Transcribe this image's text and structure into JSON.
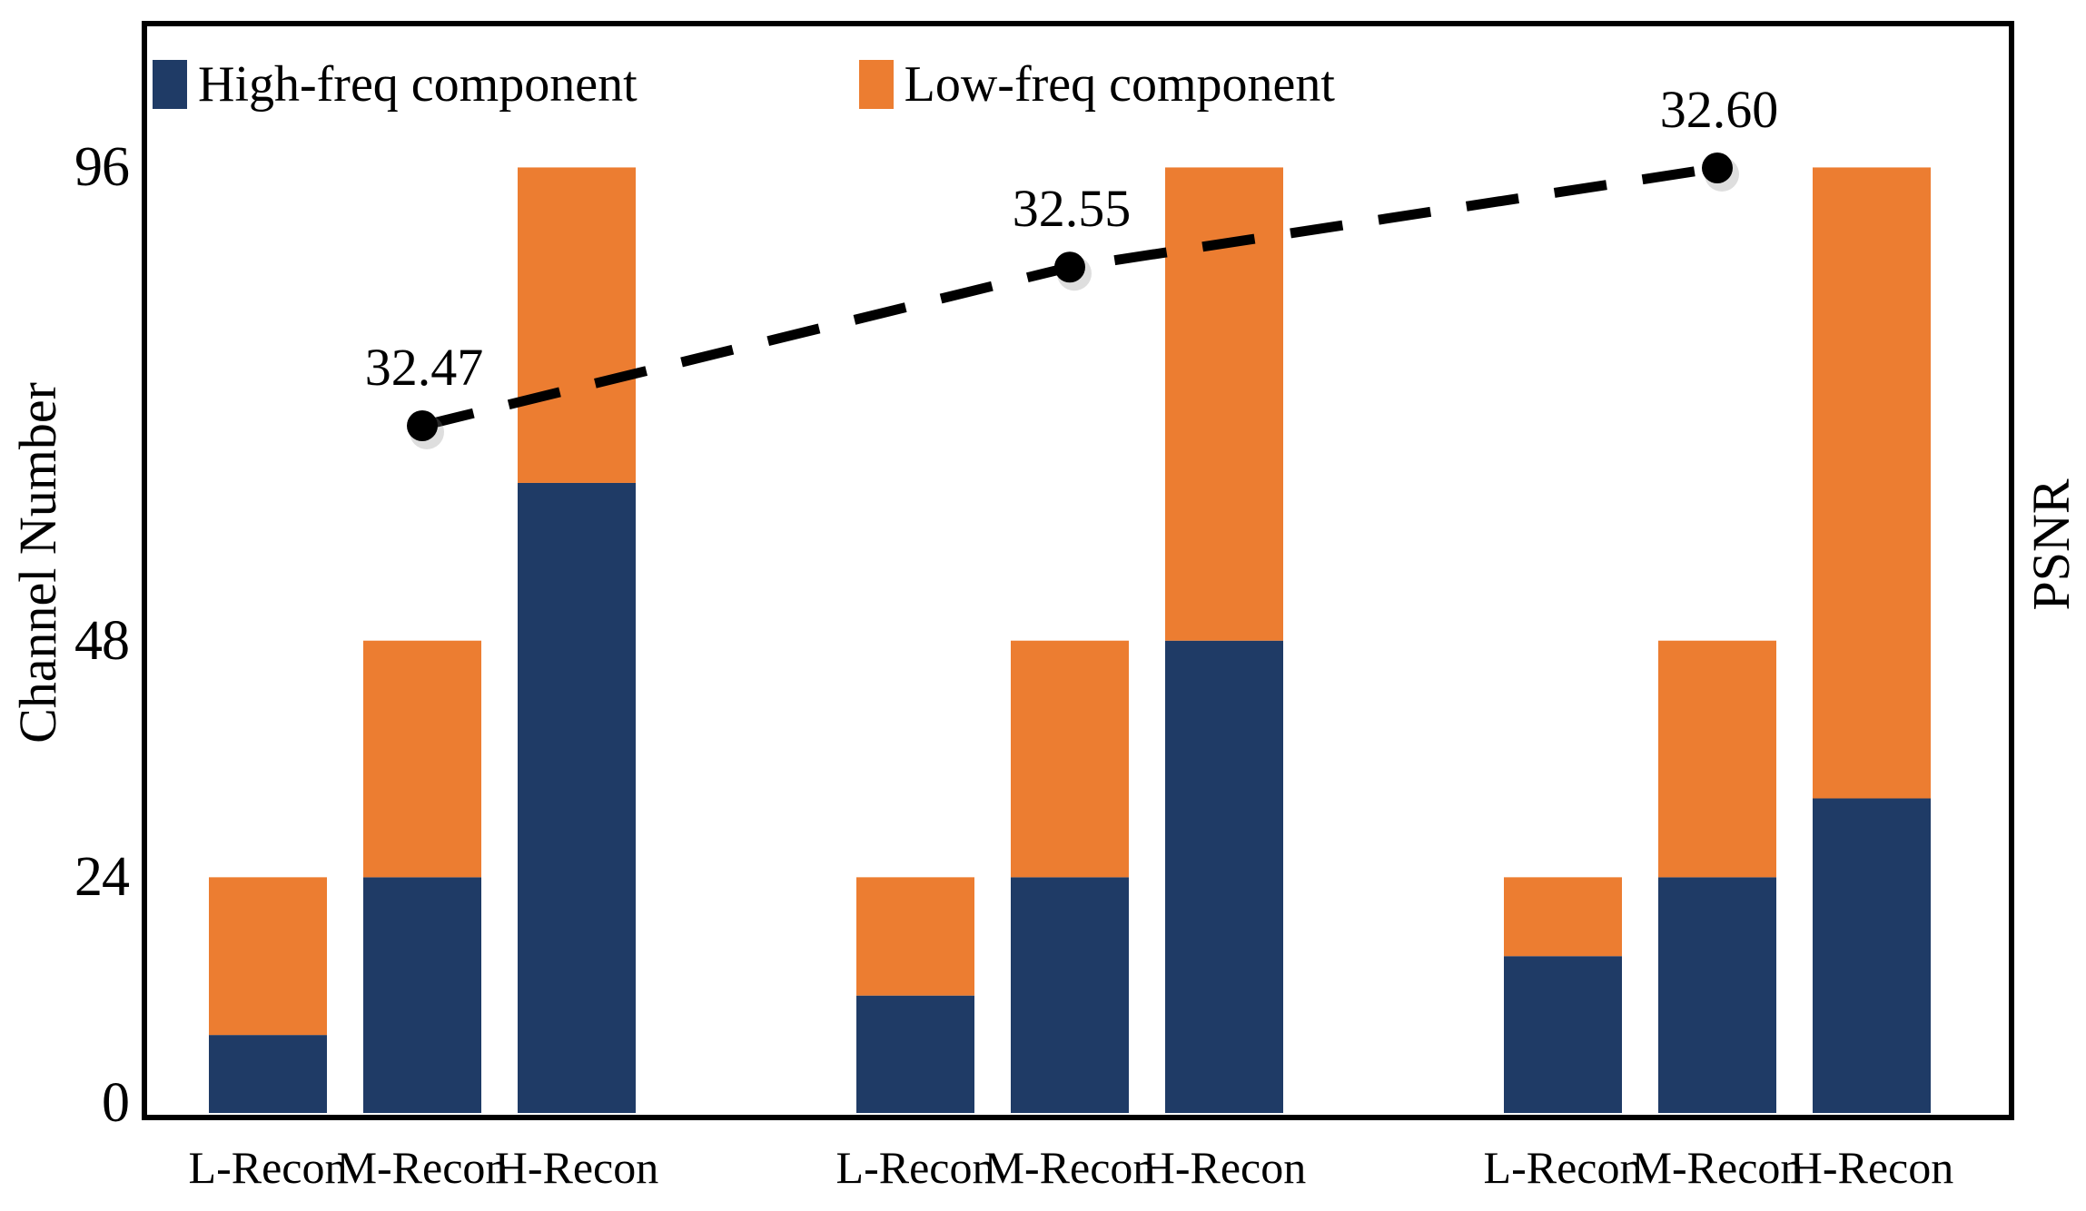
{
  "legend": {
    "items": [
      {
        "label": "High-freq component",
        "color": "#1F3B66"
      },
      {
        "label": "Low-freq component",
        "color": "#EC7D31"
      }
    ]
  },
  "axes": {
    "left_title": "Channel Number",
    "right_title": "PSNR",
    "ytick_labels": [
      "0",
      "24",
      "48",
      "96"
    ]
  },
  "chart_data": {
    "type": "bar+line",
    "bar_mode": "stacked",
    "group_size": 3,
    "categories": [
      "L-Recon",
      "M-Recon",
      "H-Recon",
      "L-Recon",
      "M-Recon",
      "H-Recon",
      "L-Recon",
      "M-Recon",
      "H-Recon"
    ],
    "series": [
      {
        "name": "High-freq component",
        "color": "#1F3B66",
        "values": [
          8,
          24,
          64,
          12,
          24,
          48,
          16,
          24,
          32
        ]
      },
      {
        "name": "Low-freq component",
        "color": "#EC7D31",
        "values": [
          16,
          24,
          32,
          12,
          24,
          48,
          8,
          24,
          64
        ]
      }
    ],
    "bar_totals": [
      24,
      48,
      96,
      24,
      48,
      96,
      24,
      48,
      96
    ],
    "ylabel": "Channel Number",
    "ylabel_right": "PSNR",
    "yticks": [
      0,
      24,
      48,
      96
    ],
    "ylim_left": [
      0,
      111
    ],
    "ylim_right": [
      32.12,
      32.67
    ],
    "grid": false,
    "legend_position": "upper-left",
    "line": {
      "name": "PSNR",
      "style": "dashed",
      "marker": "circle",
      "color": "#000000",
      "anchored_to": "M-Recon bar of each group",
      "values": [
        32.47,
        32.55,
        32.6
      ],
      "labels": [
        "32.47",
        "32.55",
        "32.60"
      ]
    }
  }
}
